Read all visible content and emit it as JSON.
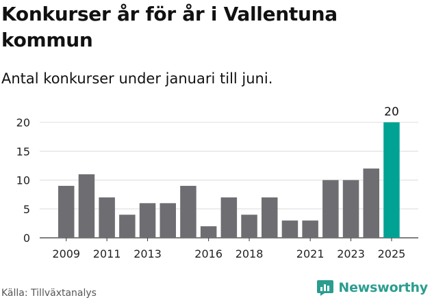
{
  "header": {
    "title": "Konkurser år för år i Vallentuna kommun",
    "subtitle": "Antal konkurser under januari till juni."
  },
  "footer": {
    "source": "Källa: Tillväxtanalys",
    "brand": "Newsworthy"
  },
  "colors": {
    "bar": "#6e6e72",
    "highlight": "#00a393",
    "brand": "#2a9d8f"
  },
  "chart_data": {
    "type": "bar",
    "categories": [
      "2009",
      "2010",
      "2011",
      "2012",
      "2013",
      "2014",
      "2015",
      "2016",
      "2017",
      "2018",
      "2019",
      "2020",
      "2021",
      "2022",
      "2023",
      "2024",
      "2025"
    ],
    "values": [
      9,
      11,
      7,
      4,
      6,
      6,
      9,
      2,
      7,
      4,
      7,
      3,
      3,
      10,
      10,
      12,
      20
    ],
    "highlight_category": "2025",
    "data_labels": [
      {
        "category": "2025",
        "label": "20"
      }
    ],
    "x_tick_labels": [
      "2009",
      "2011",
      "2013",
      "2016",
      "2018",
      "2021",
      "2023",
      "2025"
    ],
    "y_ticks": [
      0,
      5,
      10,
      15,
      20
    ],
    "ylim": [
      0,
      20
    ],
    "grid": true,
    "xlabel": "",
    "ylabel": ""
  }
}
